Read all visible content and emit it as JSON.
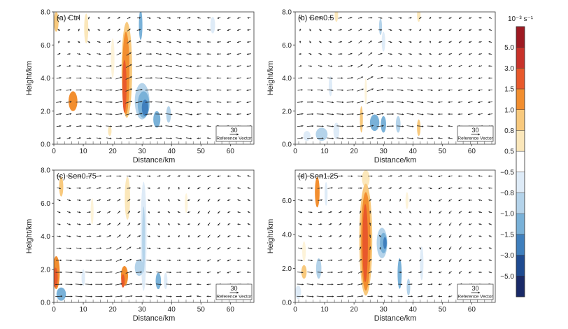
{
  "chart_data": [
    {
      "type": "heatmap",
      "panel_label": "(a) Ctrl",
      "xlabel": "Distance/km",
      "ylabel": "Height/km",
      "xlim": [
        0,
        68
      ],
      "ylim": [
        0,
        8
      ],
      "xticks": [
        "0",
        "10",
        "20",
        "30",
        "40",
        "50",
        "60"
      ],
      "yticks": [
        "0.0",
        "2.0",
        "4.0",
        "6.0",
        "8.0"
      ],
      "reference_vector": {
        "value": "30",
        "label": "Reference Vector"
      },
      "features": [
        {
          "x": 0.8,
          "y": 7.4,
          "rx": 0.8,
          "ry": 0.6,
          "v": 1.0
        },
        {
          "x": 11,
          "y": 7.0,
          "rx": 0.7,
          "ry": 0.9,
          "v": 0.8
        },
        {
          "x": 6.5,
          "y": 2.6,
          "rx": 1.5,
          "ry": 0.6,
          "v": 1.5
        },
        {
          "x": 6.5,
          "y": 2.6,
          "rx": 0.8,
          "ry": 0.35,
          "v": 1.0
        },
        {
          "x": 20,
          "y": 5.2,
          "rx": 0.6,
          "ry": 1.2,
          "v": 0.5
        },
        {
          "x": 24.8,
          "y": 4.5,
          "rx": 1.8,
          "ry": 2.9,
          "v": 1.0
        },
        {
          "x": 24.5,
          "y": 4.3,
          "rx": 1.2,
          "ry": 2.5,
          "v": 1.5
        },
        {
          "x": 24.0,
          "y": 3.5,
          "rx": 0.7,
          "ry": 1.6,
          "v": 3.0
        },
        {
          "x": 29.5,
          "y": 7.2,
          "rx": 0.6,
          "ry": 0.9,
          "v": -1.5
        },
        {
          "x": 30,
          "y": 2.6,
          "rx": 2.5,
          "ry": 1.1,
          "v": -1.0
        },
        {
          "x": 30.5,
          "y": 2.4,
          "rx": 2.0,
          "ry": 0.8,
          "v": -1.5
        },
        {
          "x": 31,
          "y": 2.2,
          "rx": 1.1,
          "ry": 0.5,
          "v": -3.0
        },
        {
          "x": 35,
          "y": 1.5,
          "rx": 1.2,
          "ry": 0.5,
          "v": -1.5
        },
        {
          "x": 39,
          "y": 1.8,
          "rx": 0.8,
          "ry": 0.5,
          "v": -1.0
        },
        {
          "x": 19,
          "y": 0.8,
          "rx": 0.6,
          "ry": 0.3,
          "v": 0.8
        },
        {
          "x": 54,
          "y": 7.2,
          "rx": 0.8,
          "ry": 0.5,
          "v": -0.8
        }
      ]
    },
    {
      "type": "heatmap",
      "panel_label": "(b) Sen0.5",
      "xlabel": "Distance/km",
      "ylabel": "Height/km",
      "xlim": [
        0,
        68
      ],
      "ylim": [
        0,
        8
      ],
      "xticks": [
        "0",
        "10",
        "20",
        "30",
        "40",
        "50",
        "60"
      ],
      "yticks": [
        "0.0",
        "2.0",
        "4.0",
        "6.0",
        "8.0"
      ],
      "reference_vector": {
        "value": "30",
        "label": "Reference Vector"
      },
      "features": [
        {
          "x": 14,
          "y": 7.8,
          "rx": 0.6,
          "ry": 0.4,
          "v": 0.8
        },
        {
          "x": 29,
          "y": 7.1,
          "rx": 0.5,
          "ry": 0.5,
          "v": -1.0
        },
        {
          "x": 30,
          "y": 6.2,
          "rx": 0.6,
          "ry": 0.6,
          "v": -0.8
        },
        {
          "x": 42,
          "y": 7.8,
          "rx": 0.6,
          "ry": 0.4,
          "v": 0.8
        },
        {
          "x": 9,
          "y": 0.6,
          "rx": 2.0,
          "ry": 0.4,
          "v": -1.0
        },
        {
          "x": 4,
          "y": 0.5,
          "rx": 1.2,
          "ry": 0.3,
          "v": -0.8
        },
        {
          "x": 14,
          "y": 0.8,
          "rx": 1.0,
          "ry": 0.5,
          "v": -0.8
        },
        {
          "x": 22.5,
          "y": 1.5,
          "rx": 0.5,
          "ry": 0.8,
          "v": 1.0
        },
        {
          "x": 24,
          "y": 3.2,
          "rx": 0.4,
          "ry": 0.8,
          "v": 0.5
        },
        {
          "x": 27,
          "y": 1.3,
          "rx": 1.6,
          "ry": 0.5,
          "v": -1.5
        },
        {
          "x": 30,
          "y": 1.2,
          "rx": 0.9,
          "ry": 0.5,
          "v": -1.5
        },
        {
          "x": 35,
          "y": 1.2,
          "rx": 0.8,
          "ry": 0.5,
          "v": -1.0
        },
        {
          "x": 42,
          "y": 1.0,
          "rx": 0.6,
          "ry": 0.5,
          "v": 1.0
        },
        {
          "x": 12,
          "y": 3.5,
          "rx": 0.6,
          "ry": 0.6,
          "v": -0.8
        }
      ]
    },
    {
      "type": "heatmap",
      "panel_label": "(c) Sen0.75",
      "xlabel": "Distance/km",
      "ylabel": "Height/km",
      "xlim": [
        0,
        68
      ],
      "ylim": [
        0,
        8
      ],
      "xticks": [
        "0",
        "10",
        "20",
        "30",
        "40",
        "50",
        "60"
      ],
      "yticks": [
        "0.0",
        "2.0",
        "4.0",
        "6.0",
        "8.0"
      ],
      "reference_vector": {
        "value": "30",
        "label": "Reference Vector"
      },
      "features": [
        {
          "x": 2.5,
          "y": 7.0,
          "rx": 0.7,
          "ry": 0.6,
          "v": 1.0
        },
        {
          "x": 0.8,
          "y": 1.8,
          "rx": 1.2,
          "ry": 1.0,
          "v": 1.5
        },
        {
          "x": 0.6,
          "y": 1.5,
          "rx": 0.7,
          "ry": 0.6,
          "v": 3.0
        },
        {
          "x": 2.5,
          "y": 0.5,
          "rx": 1.6,
          "ry": 0.4,
          "v": -1.5
        },
        {
          "x": 10,
          "y": 1.5,
          "rx": 0.6,
          "ry": 0.5,
          "v": -0.8
        },
        {
          "x": 13,
          "y": 5.5,
          "rx": 0.5,
          "ry": 0.8,
          "v": 0.5
        },
        {
          "x": 25,
          "y": 6.3,
          "rx": 0.9,
          "ry": 1.3,
          "v": 0.8
        },
        {
          "x": 24,
          "y": 1.6,
          "rx": 1.2,
          "ry": 0.6,
          "v": 1.5
        },
        {
          "x": 23.5,
          "y": 1.3,
          "rx": 0.6,
          "ry": 0.4,
          "v": 3.0
        },
        {
          "x": 30.5,
          "y": 4.0,
          "rx": 1.0,
          "ry": 3.3,
          "v": -0.8
        },
        {
          "x": 30.5,
          "y": 3.8,
          "rx": 0.5,
          "ry": 2.0,
          "v": -1.0
        },
        {
          "x": 29,
          "y": 2.1,
          "rx": 1.5,
          "ry": 0.5,
          "v": -1.0
        },
        {
          "x": 35.5,
          "y": 1.3,
          "rx": 0.9,
          "ry": 0.5,
          "v": -1.5
        },
        {
          "x": 38,
          "y": 1.3,
          "rx": 0.6,
          "ry": 0.5,
          "v": -0.8
        },
        {
          "x": 45,
          "y": 6.0,
          "rx": 0.5,
          "ry": 0.6,
          "v": 0.5
        }
      ]
    },
    {
      "type": "heatmap",
      "panel_label": "(d) Sen1.25",
      "xlabel": "Distance/km",
      "ylabel": "Height/km",
      "xlim": [
        0,
        68
      ],
      "ylim": [
        0,
        7.8
      ],
      "xticks": [
        "0",
        "10",
        "20",
        "30",
        "40",
        "50",
        "60"
      ],
      "yticks": [
        "0.0",
        "2.0",
        "4.0",
        "6.0"
      ],
      "reference_vector": {
        "value": "30",
        "label": "Reference Vector"
      },
      "features": [
        {
          "x": 7.5,
          "y": 6.5,
          "rx": 0.8,
          "ry": 0.9,
          "v": 1.5
        },
        {
          "x": 10.5,
          "y": 6.4,
          "rx": 0.5,
          "ry": 0.7,
          "v": -0.8
        },
        {
          "x": 3,
          "y": 1.8,
          "rx": 0.9,
          "ry": 0.4,
          "v": 1.0
        },
        {
          "x": 3,
          "y": 3.0,
          "rx": 0.6,
          "ry": 0.6,
          "v": 0.5
        },
        {
          "x": 8,
          "y": 2.0,
          "rx": 0.9,
          "ry": 0.6,
          "v": -1.0
        },
        {
          "x": 1,
          "y": 0.6,
          "rx": 1.0,
          "ry": 0.4,
          "v": -0.8
        },
        {
          "x": 24,
          "y": 7.3,
          "rx": 1.3,
          "ry": 0.5,
          "v": 0.8
        },
        {
          "x": 24,
          "y": 3.7,
          "rx": 2.2,
          "ry": 3.3,
          "v": 1.0
        },
        {
          "x": 24,
          "y": 3.6,
          "rx": 1.6,
          "ry": 2.9,
          "v": 1.5
        },
        {
          "x": 23.8,
          "y": 3.5,
          "rx": 0.9,
          "ry": 2.3,
          "v": 3.0
        },
        {
          "x": 29.5,
          "y": 3.5,
          "rx": 1.8,
          "ry": 0.9,
          "v": -1.0
        },
        {
          "x": 30,
          "y": 3.5,
          "rx": 1.2,
          "ry": 0.6,
          "v": -1.5
        },
        {
          "x": 30.5,
          "y": 3.5,
          "rx": 0.6,
          "ry": 0.35,
          "v": -3.0
        },
        {
          "x": 35.5,
          "y": 1.7,
          "rx": 0.7,
          "ry": 0.9,
          "v": -1.5
        },
        {
          "x": 38.5,
          "y": 0.9,
          "rx": 0.6,
          "ry": 0.5,
          "v": -1.0
        },
        {
          "x": 43,
          "y": 2.3,
          "rx": 0.6,
          "ry": 1.0,
          "v": -0.8
        },
        {
          "x": 38,
          "y": 6.0,
          "rx": 0.5,
          "ry": 0.5,
          "v": 0.5
        }
      ]
    }
  ],
  "colorbar": {
    "unit": "10⁻³ s⁻¹",
    "levels": [
      "5.0",
      "3.0",
      "1.5",
      "1.0",
      "0.8",
      "0.5",
      "−0.5",
      "−0.8",
      "−1.0",
      "−1.5",
      "−3.0",
      "−5.0"
    ],
    "colors": [
      "#9e1a22",
      "#c8322a",
      "#e8592b",
      "#f28e2f",
      "#f8c97d",
      "#fbe7ba",
      "#ffffff",
      "#deebf7",
      "#b4d3ea",
      "#79b1d8",
      "#3f7fbd",
      "#1f4b91",
      "#1a2a68"
    ],
    "value_colors": {
      "3.0": "#e8592b",
      "1.5": "#f28e2f",
      "1.0": "#f8c97d",
      "0.8": "#fbe7ba",
      "0.5": "#fdf3d9",
      "-0.5": "#eef4fb",
      "-0.8": "#deebf7",
      "-1.0": "#b4d3ea",
      "-1.5": "#79b1d8",
      "-3.0": "#3f7fbd"
    }
  }
}
